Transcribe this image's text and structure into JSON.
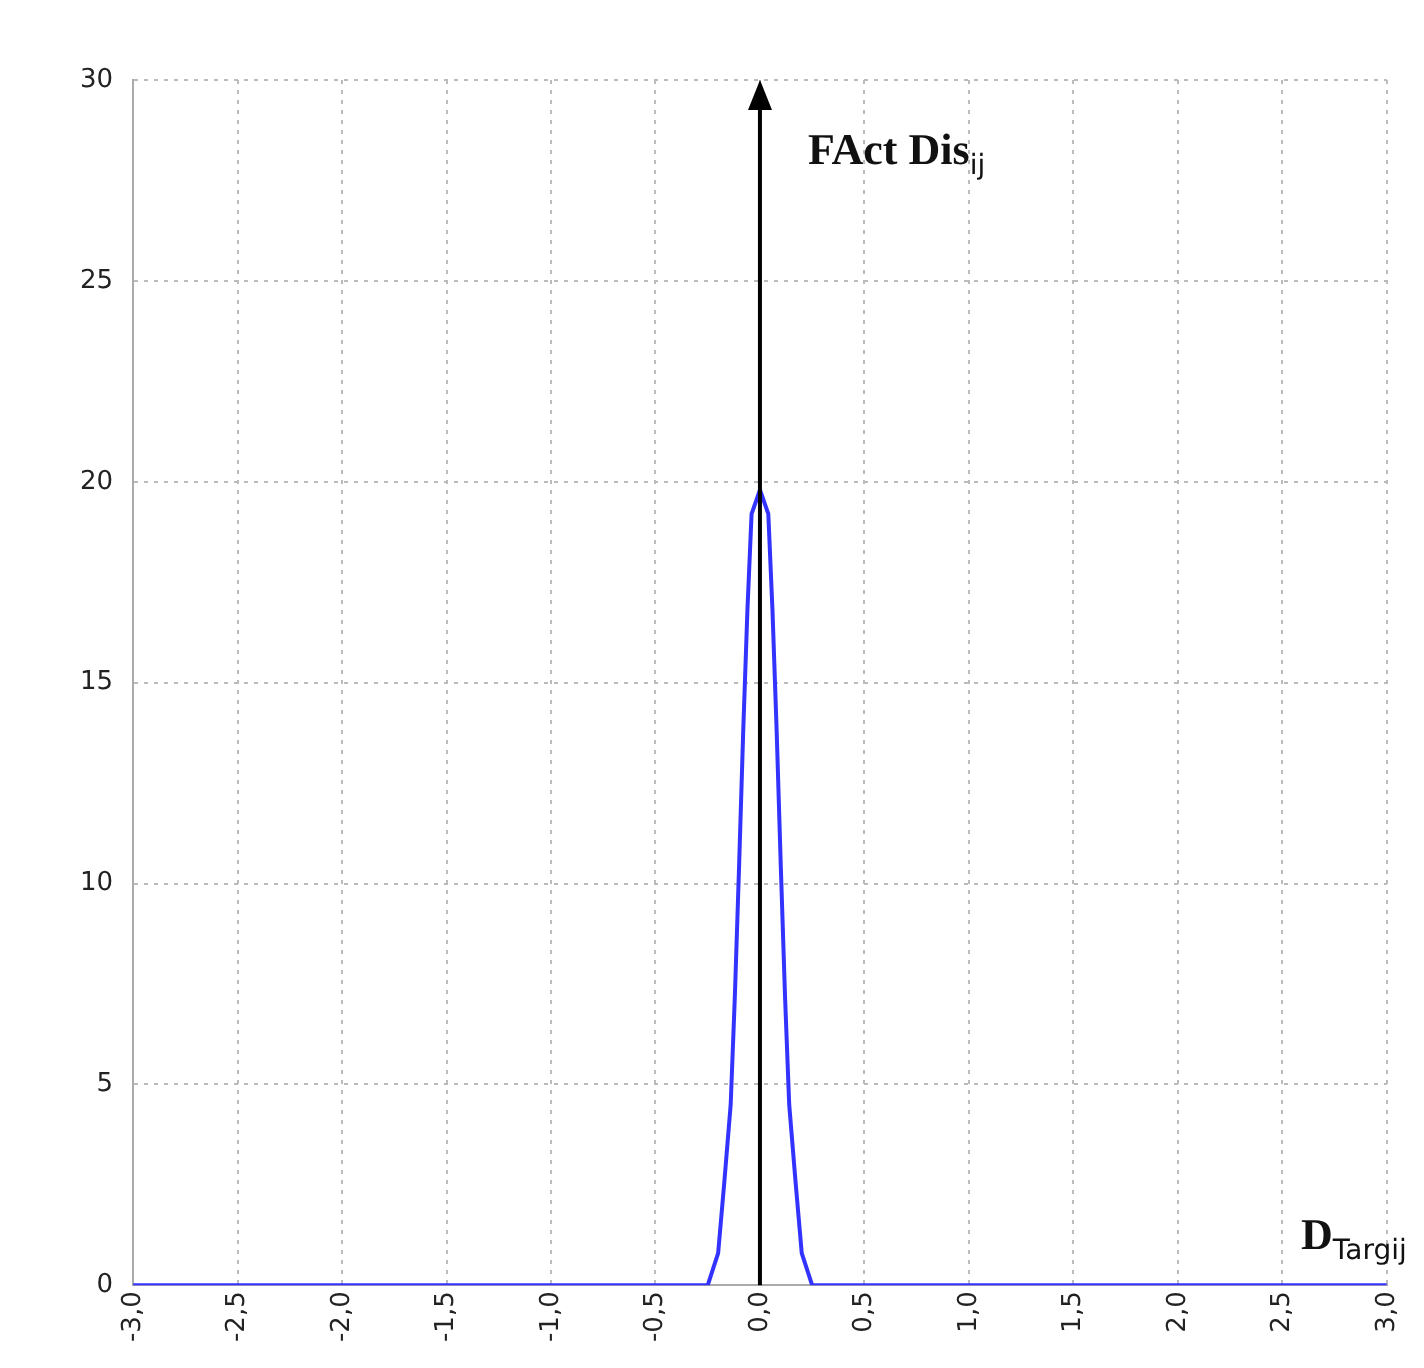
{
  "chart_data": {
    "type": "line",
    "xlabel": "D$_{Targij}$",
    "ylabel": "FAct Dis$_{ij}$",
    "x": [
      -3,
      -0.25,
      -0.2,
      -0.17,
      -0.14,
      -0.12,
      -0.1,
      -0.08,
      -0.06,
      -0.04,
      0,
      0.04,
      0.06,
      0.08,
      0.1,
      0.12,
      0.14,
      0.17,
      0.2,
      0.25,
      3
    ],
    "series": [
      {
        "color": "#3333ff",
        "values": [
          0,
          0,
          0.8,
          2.6,
          4.5,
          7.2,
          10.4,
          13.8,
          16.8,
          19.2,
          19.8,
          19.2,
          16.8,
          13.8,
          10.4,
          7.2,
          4.5,
          2.6,
          0.8,
          0,
          0
        ]
      }
    ],
    "xlim": [
      -3,
      3
    ],
    "ylim": [
      0,
      30
    ],
    "xticks": [
      {
        "value": -3,
        "label": "-3,0"
      },
      {
        "value": -2.5,
        "label": "-2,5"
      },
      {
        "value": -2,
        "label": "-2,0"
      },
      {
        "value": -1.5,
        "label": "-1,5"
      },
      {
        "value": -1,
        "label": "-1,0"
      },
      {
        "value": -0.5,
        "label": "-0,5"
      },
      {
        "value": 0,
        "label": "0,0"
      },
      {
        "value": 0.5,
        "label": "0,5"
      },
      {
        "value": 1,
        "label": "1,0"
      },
      {
        "value": 1.5,
        "label": "1,5"
      },
      {
        "value": 2,
        "label": "2,0"
      },
      {
        "value": 2.5,
        "label": "2,5"
      },
      {
        "value": 3,
        "label": "3,0"
      }
    ],
    "yticks": [
      0,
      5,
      10,
      15,
      20,
      25,
      30
    ],
    "ref_lines": [
      {
        "axis": "x",
        "value": 0,
        "color": "#000000"
      }
    ],
    "grid": true,
    "legend": false,
    "marker": "none",
    "line_style": "solid"
  }
}
